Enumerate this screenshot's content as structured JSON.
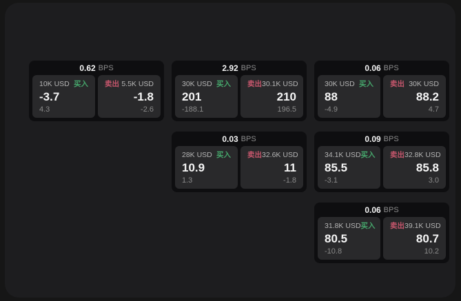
{
  "page": {
    "bps_suffix": "BPS",
    "buy_label": "买入",
    "sell_label": "卖出"
  },
  "colors": {
    "page_bg": "#161616",
    "container_bg": "#1d1d1f",
    "card_bg": "#0e0e10",
    "panel_bg": "#29292b",
    "buy_green": "#46a56b",
    "sell_red": "#c5566c",
    "value_white": "#f5f5f5",
    "label_gray": "#b5b5b5",
    "sub_gray": "#8b8b8b"
  },
  "cards": [
    {
      "bps_value": "0.62",
      "grid": {
        "row": 1,
        "col": 1
      },
      "buy": {
        "amount": "10K USD",
        "value": "-3.7",
        "sub": "4.3"
      },
      "sell": {
        "amount": "5.5K USD",
        "value": "-1.8",
        "sub": "-2.6"
      }
    },
    {
      "bps_value": "2.92",
      "grid": {
        "row": 1,
        "col": 2
      },
      "buy": {
        "amount": "30K USD",
        "value": "201",
        "sub": "-188.1"
      },
      "sell": {
        "amount": "30.1K USD",
        "value": "210",
        "sub": "196.5"
      }
    },
    {
      "bps_value": "0.06",
      "grid": {
        "row": 1,
        "col": 3
      },
      "buy": {
        "amount": "30K USD",
        "value": "88",
        "sub": "-4.9"
      },
      "sell": {
        "amount": "30K USD",
        "value": "88.2",
        "sub": "4.7"
      }
    },
    {
      "bps_value": "0.03",
      "grid": {
        "row": 2,
        "col": 2
      },
      "buy": {
        "amount": "28K USD",
        "value": "10.9",
        "sub": "1.3"
      },
      "sell": {
        "amount": "32.6K USD",
        "value": "11",
        "sub": "-1.8"
      }
    },
    {
      "bps_value": "0.09",
      "grid": {
        "row": 2,
        "col": 3
      },
      "buy": {
        "amount": "34.1K USD",
        "value": "85.5",
        "sub": "-3.1"
      },
      "sell": {
        "amount": "32.8K USD",
        "value": "85.8",
        "sub": "3.0"
      }
    },
    {
      "bps_value": "0.06",
      "grid": {
        "row": 3,
        "col": 3
      },
      "buy": {
        "amount": "31.8K USD",
        "value": "80.5",
        "sub": "-10.8"
      },
      "sell": {
        "amount": "39.1K USD",
        "value": "80.7",
        "sub": "10.2"
      }
    }
  ]
}
